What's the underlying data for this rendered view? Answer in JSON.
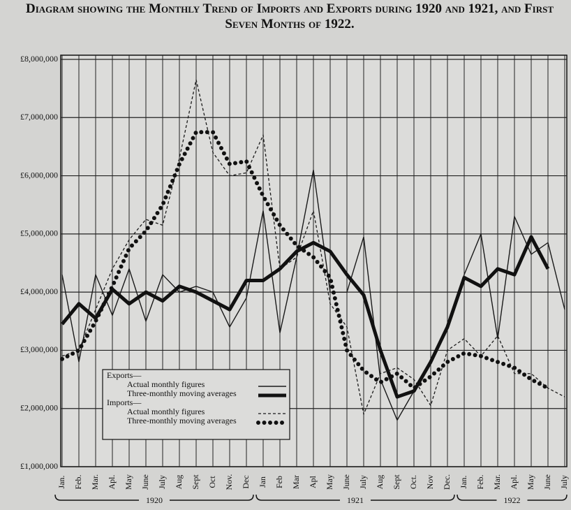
{
  "chart_data": {
    "type": "line",
    "title": "Diagram showing the Monthly Trend of Imports and Exports during 1920 and 1921, and First Seven Months of 1922.",
    "categories": [
      "Jan.",
      "Feb.",
      "Mar.",
      "Apl.",
      "May",
      "June",
      "July",
      "Aug",
      "Sept",
      "Oct",
      "Nov.",
      "Dec",
      "Jan",
      "Feb",
      "Mar",
      "Apl",
      "May",
      "June",
      "July",
      "Aug",
      "Sept",
      "Oct.",
      "Nov",
      "Dec.",
      "Jan.",
      "Feb.",
      "Mar.",
      "Apl.",
      "May",
      "June",
      "July"
    ],
    "years": [
      {
        "label": "1920",
        "from": 0,
        "to": 11
      },
      {
        "label": "1921",
        "from": 12,
        "to": 23
      },
      {
        "label": "1922",
        "from": 24,
        "to": 30
      }
    ],
    "ylim": [
      1000000,
      8000000
    ],
    "yticks": [
      {
        "value": 1000000,
        "label": "£1,000,000"
      },
      {
        "value": 2000000,
        "label": "£2,000,000"
      },
      {
        "value": 3000000,
        "label": "£3,000,000"
      },
      {
        "value": 4000000,
        "label": "£4,000,000"
      },
      {
        "value": 5000000,
        "label": "£5,000,000"
      },
      {
        "value": 6000000,
        "label": "£6,000,000"
      },
      {
        "value": 7000000,
        "label": "£7,000,000"
      },
      {
        "value": 8000000,
        "label": "£8,000,000"
      }
    ],
    "grid": true,
    "legend_groups": [
      "Exports—",
      "Imports—"
    ],
    "series": [
      {
        "name": "Actual monthly figures",
        "group": 0,
        "style": "thin",
        "color": "#1a1a1a",
        "values": [
          4300000,
          2800000,
          4300000,
          3600000,
          4400000,
          3500000,
          4300000,
          4000000,
          4100000,
          4000000,
          3400000,
          3900000,
          5400000,
          3300000,
          4600000,
          6100000,
          4000000,
          4000000,
          4950000,
          2500000,
          1800000,
          2300000,
          2800000,
          3400000,
          4300000,
          5000000,
          3200000,
          5300000,
          4650000,
          4850000,
          3700000
        ]
      },
      {
        "name": "Three-monthly moving averages",
        "group": 0,
        "style": "thick",
        "color": "#111",
        "values": [
          3450000,
          3800000,
          3550000,
          4050000,
          3800000,
          4000000,
          3850000,
          4100000,
          4000000,
          3850000,
          3700000,
          4200000,
          4200000,
          4400000,
          4700000,
          4850000,
          4700000,
          4300000,
          3950000,
          3000000,
          2200000,
          2300000,
          2800000,
          3400000,
          4250000,
          4100000,
          4400000,
          4300000,
          4950000,
          4400000,
          null
        ]
      },
      {
        "name": "Actual monthly figures",
        "group": 1,
        "style": "dashed",
        "color": "#1a1a1a",
        "values": [
          2900000,
          3000000,
          3700000,
          4400000,
          4900000,
          5250000,
          5150000,
          6300000,
          7650000,
          6400000,
          6000000,
          6050000,
          6700000,
          4400000,
          4600000,
          5400000,
          3800000,
          3400000,
          1900000,
          2600000,
          2700000,
          2500000,
          2050000,
          3000000,
          3200000,
          2900000,
          3250000,
          2600000,
          2600000,
          2350000,
          2200000
        ]
      },
      {
        "name": "Three-monthly moving averages",
        "group": 1,
        "style": "dotted",
        "color": "#111",
        "values": [
          2850000,
          3000000,
          3500000,
          4100000,
          4750000,
          5050000,
          5500000,
          6200000,
          6750000,
          6750000,
          6200000,
          6250000,
          5650000,
          5150000,
          4800000,
          4600000,
          4250000,
          3000000,
          2650000,
          2450000,
          2600000,
          2350000,
          2550000,
          2800000,
          2950000,
          2900000,
          2800000,
          2700000,
          2500000,
          2350000,
          null
        ]
      }
    ]
  }
}
